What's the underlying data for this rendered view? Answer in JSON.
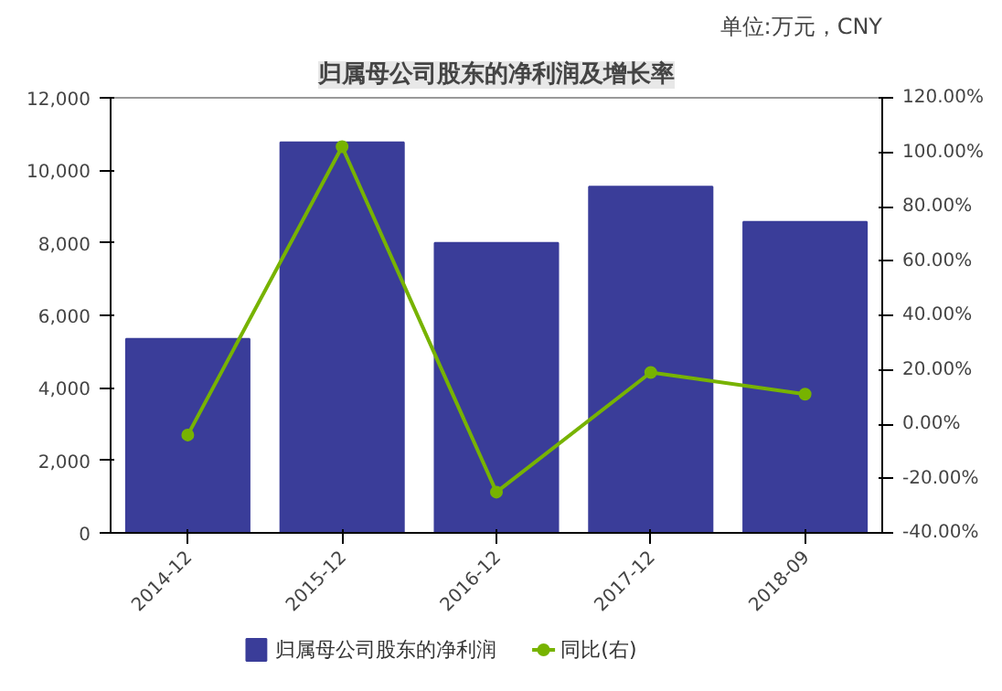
{
  "chart_data": {
    "type": "bar",
    "title": "归属母公司股东的净利润及增长率",
    "annotations": [
      "单位:万元，CNY"
    ],
    "categories": [
      "2014-12",
      "2015-12",
      "2016-12",
      "2017-12",
      "2018-09"
    ],
    "series": [
      {
        "name": "归属母公司股东的净利润",
        "color": "#3a3d99",
        "values": [
          5350,
          10770,
          8000,
          9550,
          8580
        ]
      },
      {
        "name": "同比(右)",
        "type": "line",
        "axis": "y2",
        "color": "#77b300",
        "marker": "circle",
        "values": [
          -4,
          102,
          -25,
          19,
          11
        ]
      }
    ],
    "ylim": [
      0,
      12000
    ],
    "yticks": [
      {
        "value": 0,
        "label": "0"
      },
      {
        "value": 2000,
        "label": "2,000"
      },
      {
        "value": 4000,
        "label": "4,000"
      },
      {
        "value": 6000,
        "label": "6,000"
      },
      {
        "value": 8000,
        "label": "8,000"
      },
      {
        "value": 10000,
        "label": "10,000"
      },
      {
        "value": 12000,
        "label": "12,000"
      }
    ],
    "y2lim": [
      -40,
      120
    ],
    "y2ticks": [
      {
        "value": -40,
        "label": "-40.00%"
      },
      {
        "value": -20,
        "label": "-20.00%"
      },
      {
        "value": 0,
        "label": "0.00%"
      },
      {
        "value": 20,
        "label": "20.00%"
      },
      {
        "value": 40,
        "label": "40.00%"
      },
      {
        "value": 60,
        "label": "60.00%"
      },
      {
        "value": 80,
        "label": "80.00%"
      },
      {
        "value": 100,
        "label": "100.00%"
      },
      {
        "value": 120,
        "label": "120.00%"
      }
    ],
    "legend": "bottom",
    "grid": false
  }
}
